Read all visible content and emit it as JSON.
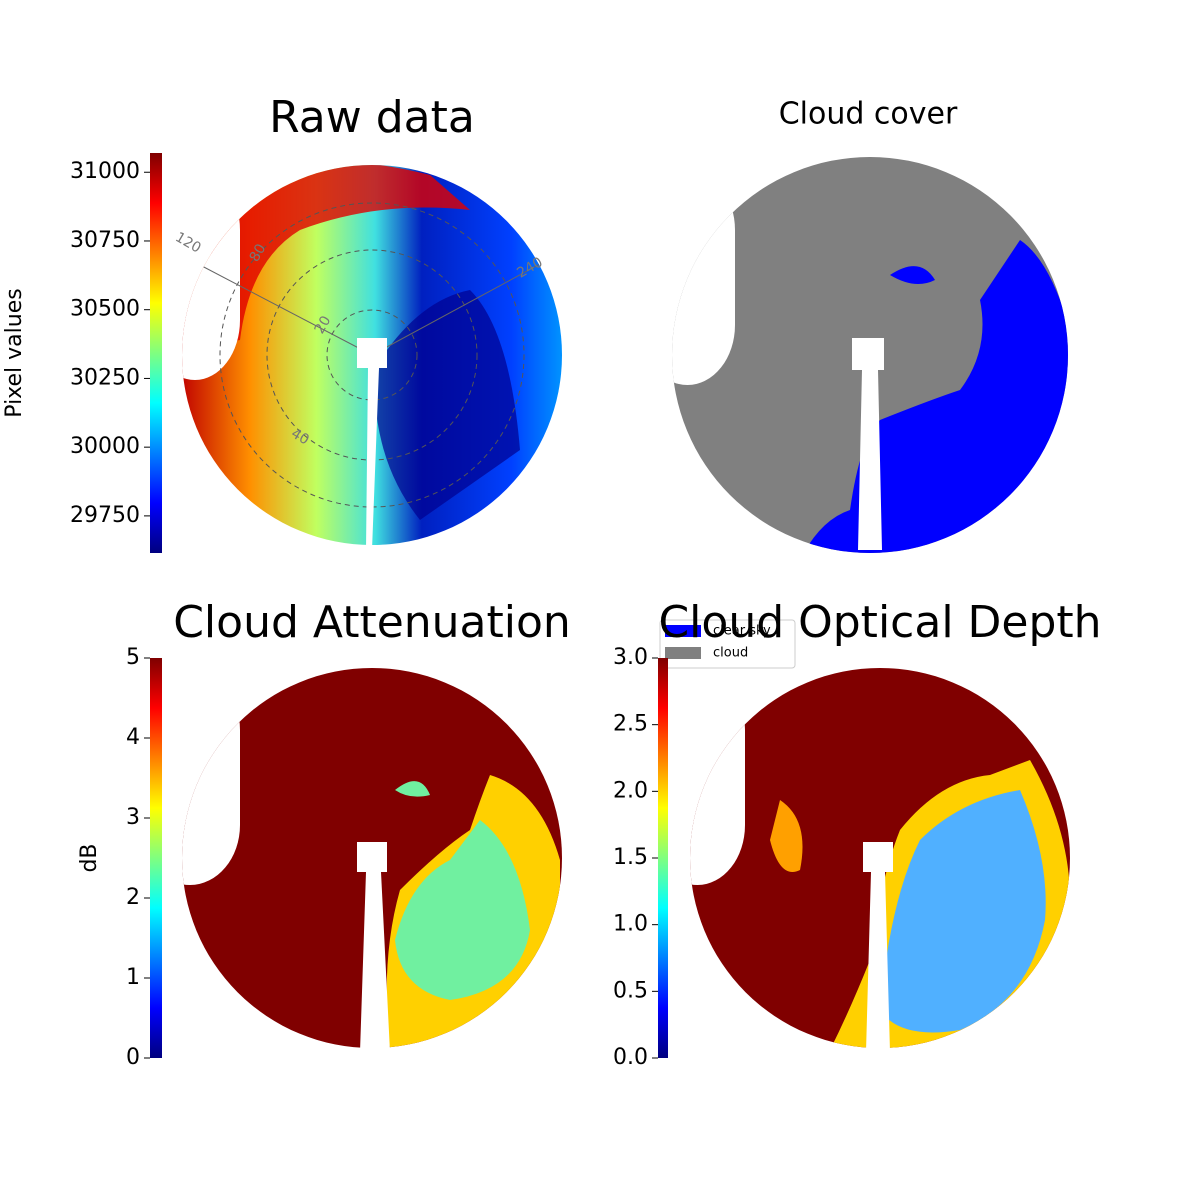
{
  "chart_data": [
    {
      "type": "image",
      "title": "Raw data",
      "annotations": [
        "120",
        "240",
        "80",
        "20",
        "40"
      ],
      "colorbar": {
        "label": "Pixel values",
        "lim": [
          29615,
          31070
        ],
        "ticks": [
          29750,
          30000,
          30250,
          30500,
          30750,
          31000
        ]
      }
    },
    {
      "type": "image",
      "title": "Cloud cover",
      "legend": [
        {
          "name": "clear sky",
          "color": "#0000ff"
        },
        {
          "name": "cloud",
          "color": "#808080"
        }
      ]
    },
    {
      "type": "image",
      "title": "Cloud Attenuation",
      "colorbar": {
        "label": "dB",
        "lim": [
          0,
          5
        ],
        "ticks": [
          0,
          1,
          2,
          3,
          4,
          5
        ]
      }
    },
    {
      "type": "image",
      "title": "Cloud Optical Depth",
      "colorbar": {
        "lim": [
          0,
          3
        ],
        "ticks": [
          {
            "value": 0,
            "label": "0.0"
          },
          {
            "value": 0.5,
            "label": "0.5"
          },
          {
            "value": 1,
            "label": "1.0"
          },
          {
            "value": 1.5,
            "label": "1.5"
          },
          {
            "value": 2,
            "label": "2.0"
          },
          {
            "value": 2.5,
            "label": "2.5"
          },
          {
            "value": 3,
            "label": "3.0"
          }
        ]
      }
    }
  ]
}
